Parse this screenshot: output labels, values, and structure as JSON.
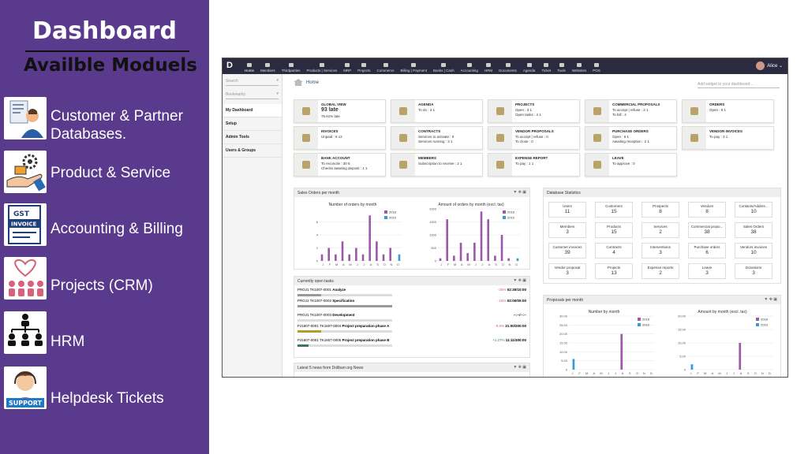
{
  "left": {
    "title": "Dashboard",
    "subtitle": "Availble Moduels",
    "modules": [
      {
        "label": "Customer & Partner Databases.",
        "icon": "customer-database-icon"
      },
      {
        "label": "Product & Service",
        "icon": "product-service-icon"
      },
      {
        "label": "Accounting & Billing",
        "icon": "gst-invoice-icon"
      },
      {
        "label": "Projects (CRM)",
        "icon": "handshake-team-icon"
      },
      {
        "label": "HRM",
        "icon": "org-chart-icon"
      },
      {
        "label": "Helpdesk Tickets",
        "icon": "support-agent-icon"
      }
    ],
    "colors": {
      "background": "#5a3a8c"
    }
  },
  "app": {
    "logo": "D",
    "nav": [
      "Home",
      "Members",
      "Thirdparties",
      "Products | Services",
      "MRP",
      "Projects",
      "Commerce",
      "Billing | Payment",
      "Banks | Cash",
      "Accounting",
      "HRM",
      "Documents",
      "Agenda",
      "Ticket",
      "Tools",
      "Websites",
      "POS"
    ],
    "user": "Alice ⌄",
    "sidebar": {
      "search": "Search",
      "bookmarks": "Bookmarks",
      "items": [
        "My Dashboard",
        "Setup",
        "Admin Tools",
        "Users & Groups"
      ]
    },
    "breadcrumb": "Home",
    "add_widget": "Add widget to your dashboard...",
    "boxes": [
      {
        "title": "GLOBAL VIEW",
        "lines": [
          "93 late",
          "75.61% late"
        ]
      },
      {
        "title": "AGENDA",
        "lines": [
          "To do : 3 1"
        ]
      },
      {
        "title": "PROJECTS",
        "lines": [
          "Open : 3 1",
          "Open tasks : 4 1"
        ]
      },
      {
        "title": "COMMERCIAL PROPOSALS",
        "lines": [
          "To accept | refuse : 2 1",
          "To bill : 4"
        ]
      },
      {
        "title": "ORDERS",
        "lines": [
          "Open : 6 1"
        ]
      },
      {
        "title": "INVOICES",
        "lines": [
          "Unpaid : 6 12"
        ]
      },
      {
        "title": "CONTRACTS",
        "lines": [
          "Services to activate : 0",
          "Services running : 3 1"
        ]
      },
      {
        "title": "VENDOR PROPOSALS",
        "lines": [
          "To accept | refuse : 0",
          "To close : 0"
        ]
      },
      {
        "title": "PURCHASE ORDERS",
        "lines": [
          "Open : 6 1",
          "Awaiting reception : 2 1"
        ]
      },
      {
        "title": "VENDOR INVOICES",
        "lines": [
          "To pay : 3 1"
        ]
      },
      {
        "title": "BANK ACCOUNT",
        "lines": [
          "To reconcile : 30 6",
          "Checks awaiting deposit : 1 1"
        ]
      },
      {
        "title": "MEMBERS",
        "lines": [
          "Subscription to receive : 2 1"
        ]
      },
      {
        "title": "EXPENSE REPORT",
        "lines": [
          "To pay : 1 1"
        ]
      },
      {
        "title": "LEAVE",
        "lines": [
          "To approve : 0"
        ]
      }
    ],
    "sales_panel": {
      "title": "Sales Orders per month",
      "chart1_title": "Number of orders by month",
      "chart2_title": "Amount of orders by month (excl. tax)",
      "legend": [
        "2018",
        "2019"
      ]
    },
    "tasks_panel": {
      "title": "Currently open tasks",
      "tasks": [
        {
          "ref": "PROJ1 TK1007-0001",
          "name": "Analyze",
          "pct": "-25%",
          "time": "02:30/10:00",
          "progress": 0.25,
          "color": "#999"
        },
        {
          "ref": "PROJ1 TK1007-0002",
          "name": "Specification",
          "pct": "-15%",
          "time": "02:00/05:00",
          "progress": 1.0,
          "color": "#999"
        },
        {
          "ref": "PROJ1 TK1007-0003",
          "name": "Development",
          "pct": "",
          "time": "--:--/--:--",
          "progress": 0,
          "color": "#999"
        },
        {
          "ref": "PJ1607-0001 TK1607-0004",
          "name": "Project preparation phase A",
          "pct": "-0.5%",
          "time": "21:00/200:00",
          "progress": 0.25,
          "color": "#b89a2a"
        },
        {
          "ref": "PJ1607-0001 TK1607-0005",
          "name": "Project preparation phase B",
          "pct": "+1.27%",
          "time": "11:11/300:00",
          "progress": 0.12,
          "color": "#3a7a5a"
        }
      ]
    },
    "news_panel": {
      "title": "Latest 5 news from Dolibarr.org News"
    },
    "db_panel": {
      "title": "Database Statistics",
      "stats": [
        {
          "label": "Users",
          "value": "11"
        },
        {
          "label": "Customers",
          "value": "15"
        },
        {
          "label": "Prospects",
          "value": "8"
        },
        {
          "label": "Vendors",
          "value": "8"
        },
        {
          "label": "Contacts/Addres...",
          "value": "10"
        },
        {
          "label": "Members",
          "value": "3"
        },
        {
          "label": "Products",
          "value": "15"
        },
        {
          "label": "Services",
          "value": "2"
        },
        {
          "label": "Commercial propo...",
          "value": "38"
        },
        {
          "label": "Sales Orders",
          "value": "38"
        },
        {
          "label": "Customer invoices",
          "value": "39"
        },
        {
          "label": "Contracts",
          "value": "4"
        },
        {
          "label": "Interventions",
          "value": "3"
        },
        {
          "label": "Purchase orders",
          "value": "6"
        },
        {
          "label": "Vendors invoices",
          "value": "10"
        },
        {
          "label": "Vendor proposal",
          "value": "3"
        },
        {
          "label": "Projects",
          "value": "13"
        },
        {
          "label": "Expense reports",
          "value": "2"
        },
        {
          "label": "Leave",
          "value": "3"
        },
        {
          "label": "Donations",
          "value": "3"
        }
      ]
    },
    "proposals_panel": {
      "title": "Proposals per month",
      "chart1_title": "Number by month",
      "chart2_title": "Amount by month (excl. tax)",
      "legend": [
        "2018",
        "2019"
      ]
    }
  },
  "chart_data": [
    {
      "type": "bar",
      "title": "Number of orders by month",
      "categories": [
        "J",
        "F",
        "M",
        "A",
        "M",
        "J",
        "J",
        "A",
        "S",
        "O",
        "N",
        "D"
      ],
      "series": [
        {
          "name": "2018",
          "values": [
            1,
            2,
            1,
            3,
            1,
            2,
            1,
            7,
            3,
            1,
            2,
            0
          ]
        },
        {
          "name": "2019",
          "values": [
            0,
            0,
            0,
            0,
            0,
            0,
            0,
            0,
            0,
            0,
            0,
            1
          ]
        }
      ],
      "ylim": [
        0,
        8
      ],
      "yticks": [
        "0",
        "2",
        "4",
        "6"
      ]
    },
    {
      "type": "bar",
      "title": "Amount of orders by month (excl. tax)",
      "categories": [
        "J",
        "F",
        "M",
        "A",
        "M",
        "J",
        "J",
        "A",
        "S",
        "O",
        "N",
        "D"
      ],
      "series": [
        {
          "name": "2018",
          "values": [
            100,
            1600,
            200,
            700,
            300,
            700,
            1900,
            1600,
            200,
            1000,
            100,
            0
          ]
        },
        {
          "name": "2019",
          "values": [
            0,
            0,
            0,
            0,
            0,
            0,
            0,
            0,
            0,
            0,
            0,
            100
          ]
        }
      ],
      "ylim": [
        0,
        2000
      ],
      "yticks": [
        "0",
        "500",
        "1000",
        "1500",
        "2000"
      ]
    },
    {
      "type": "bar",
      "title": "Number by month",
      "categories": [
        "J",
        "F",
        "M",
        "A",
        "M",
        "J",
        "J",
        "A",
        "S",
        "O",
        "N",
        "D"
      ],
      "series": [
        {
          "name": "2018",
          "values": [
            0,
            0,
            0,
            0,
            0,
            0,
            0,
            20,
            0,
            0,
            0,
            0
          ]
        },
        {
          "name": "2019",
          "values": [
            6,
            0,
            0,
            0,
            0,
            0,
            0,
            0,
            0,
            0,
            0,
            0
          ]
        }
      ],
      "ylim": [
        0,
        30
      ],
      "yticks": [
        "0",
        "5.00",
        "10.00",
        "15.00",
        "20.00",
        "25.00",
        "30.00"
      ]
    },
    {
      "type": "bar",
      "title": "Amount by month (excl. tax)",
      "categories": [
        "J",
        "F",
        "M",
        "A",
        "M",
        "J",
        "J",
        "A",
        "S",
        "O",
        "N",
        "D"
      ],
      "series": [
        {
          "name": "2018",
          "values": [
            0,
            0,
            0,
            0,
            0,
            0,
            0,
            10,
            0,
            0,
            0,
            0
          ]
        },
        {
          "name": "2019",
          "values": [
            2,
            0,
            0,
            0,
            0,
            0,
            0,
            0,
            0,
            0,
            0,
            0
          ]
        }
      ],
      "ylim": [
        0,
        20
      ],
      "yticks": [
        "0",
        "5.00",
        "10.00",
        "15.00",
        "20.00"
      ]
    }
  ]
}
